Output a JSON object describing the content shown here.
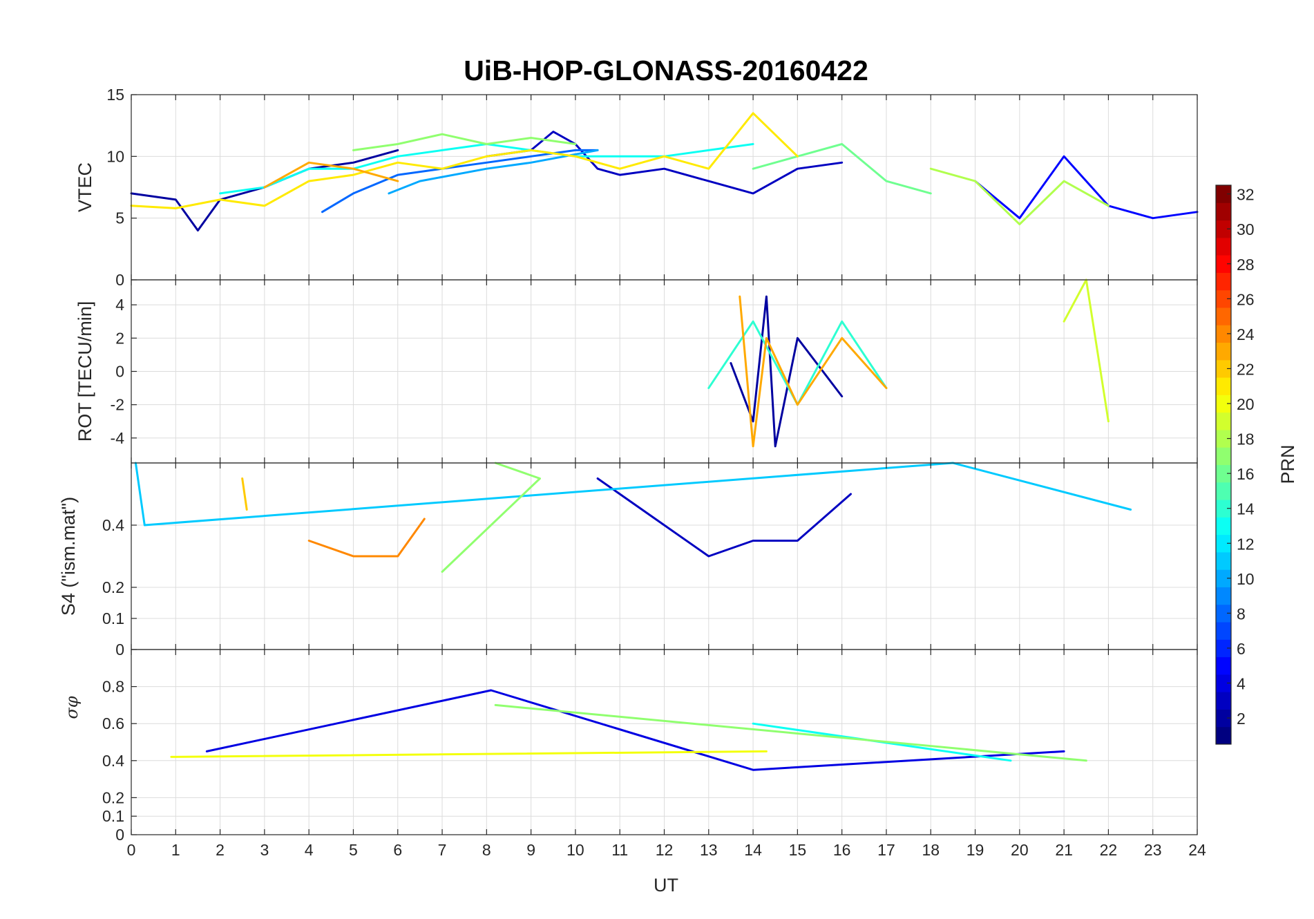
{
  "figure": {
    "title": "UiB-HOP-GLONASS-20160422",
    "xlabel": "UT"
  },
  "colorbar": {
    "label": "PRN",
    "range": [
      1,
      32
    ],
    "ticks": [
      "2",
      "4",
      "6",
      "8",
      "10",
      "12",
      "14",
      "16",
      "18",
      "20",
      "22",
      "24",
      "26",
      "28",
      "30",
      "32"
    ],
    "colormap": "jet"
  },
  "chart_data": [
    {
      "type": "line",
      "panel": "vtec",
      "ylabel": "VTEC",
      "xlim": [
        0,
        24
      ],
      "ylim": [
        0,
        15
      ],
      "xticks": [
        "0",
        "1",
        "2",
        "3",
        "4",
        "5",
        "6",
        "7",
        "8",
        "9",
        "10",
        "11",
        "12",
        "13",
        "14",
        "15",
        "16",
        "17",
        "18",
        "19",
        "20",
        "21",
        "22",
        "23",
        "24"
      ],
      "yticks": [
        "0",
        "5",
        "10",
        "15"
      ],
      "grid": true,
      "series": [
        {
          "prn": 2,
          "x": [
            0,
            1,
            1.5,
            2,
            3,
            4,
            5,
            6
          ],
          "y": [
            7,
            6.5,
            4,
            6.5,
            7.5,
            9,
            9.5,
            10.5
          ]
        },
        {
          "prn": 3,
          "x": [
            8,
            9,
            9.5,
            10,
            10.5,
            11,
            12,
            13,
            14,
            15,
            16
          ],
          "y": [
            10,
            10.5,
            12,
            11,
            9,
            8.5,
            9,
            8,
            7,
            9,
            9.5
          ]
        },
        {
          "prn": 5,
          "x": [
            19,
            20,
            21,
            22,
            23,
            24
          ],
          "y": [
            8,
            5,
            10,
            6,
            5,
            5.5
          ]
        },
        {
          "prn": 8,
          "x": [
            4.3,
            5,
            6,
            7,
            8,
            9,
            10,
            10.5
          ],
          "y": [
            5.5,
            7,
            8.5,
            9,
            9.5,
            10,
            10.5,
            10.5
          ]
        },
        {
          "prn": 10,
          "x": [
            5.8,
            6.5,
            8,
            9,
            10.5
          ],
          "y": [
            7,
            8,
            9,
            9.5,
            10.5
          ]
        },
        {
          "prn": 13,
          "x": [
            2,
            3,
            4,
            5,
            6,
            7,
            8,
            9,
            10,
            11,
            12,
            13,
            14
          ],
          "y": [
            7,
            7.5,
            9,
            9,
            10,
            10.5,
            11,
            10.5,
            10,
            10,
            10,
            10.5,
            11
          ]
        },
        {
          "prn": 16,
          "x": [
            14,
            15,
            16,
            17,
            18
          ],
          "y": [
            9,
            10,
            11,
            8,
            7
          ]
        },
        {
          "prn": 17,
          "x": [
            5,
            6,
            7,
            8,
            9,
            10
          ],
          "y": [
            10.5,
            11,
            11.8,
            11,
            11.5,
            11
          ]
        },
        {
          "prn": 18,
          "x": [
            18,
            19,
            20,
            21,
            22
          ],
          "y": [
            9,
            8,
            4.5,
            8,
            6
          ]
        },
        {
          "prn": 21,
          "x": [
            0,
            1,
            2,
            3,
            4,
            5,
            6,
            7,
            8,
            9,
            10,
            11,
            12,
            13,
            14,
            15
          ],
          "y": [
            6,
            5.8,
            6.5,
            6,
            8,
            8.5,
            9.5,
            9,
            10,
            10.5,
            10,
            9,
            10,
            9,
            13.5,
            10
          ]
        },
        {
          "prn": 23,
          "x": [
            3,
            4,
            5,
            6
          ],
          "y": [
            7.5,
            9.5,
            9,
            8
          ]
        }
      ]
    },
    {
      "type": "line",
      "panel": "rot",
      "ylabel": "ROT [TECU/min]",
      "xlim": [
        0,
        24
      ],
      "ylim": [
        -5.5,
        5.5
      ],
      "xticks": [
        "0",
        "1",
        "2",
        "3",
        "4",
        "5",
        "6",
        "7",
        "8",
        "9",
        "10",
        "11",
        "12",
        "13",
        "14",
        "15",
        "16",
        "17",
        "18",
        "19",
        "20",
        "21",
        "22",
        "23",
        "24"
      ],
      "yticks": [
        "-4",
        "-2",
        "0",
        "2",
        "4"
      ],
      "grid": true,
      "series": [
        {
          "prn": 2,
          "x": [
            13.5,
            14,
            14.3,
            14.5,
            15,
            16
          ],
          "y": [
            0.5,
            -3,
            4.5,
            -4.5,
            2,
            -1.5
          ]
        },
        {
          "prn": 14,
          "x": [
            13,
            14,
            15,
            16,
            17
          ],
          "y": [
            -1,
            3,
            -2,
            3,
            -1
          ]
        },
        {
          "prn": 19,
          "x": [
            21,
            21.5,
            22
          ],
          "y": [
            3,
            5.5,
            -3
          ]
        },
        {
          "prn": 23,
          "x": [
            13.7,
            14,
            14.3,
            15,
            16,
            17
          ],
          "y": [
            4.5,
            -4.5,
            2,
            -2,
            2,
            -1
          ]
        }
      ]
    },
    {
      "type": "line",
      "panel": "s4",
      "ylabel": "S4 (\"ism.mat\")",
      "xlim": [
        0,
        24
      ],
      "ylim": [
        0,
        0.6
      ],
      "xticks": [
        "0",
        "1",
        "2",
        "3",
        "4",
        "5",
        "6",
        "7",
        "8",
        "9",
        "10",
        "11",
        "12",
        "13",
        "14",
        "15",
        "16",
        "17",
        "18",
        "19",
        "20",
        "21",
        "22",
        "23",
        "24"
      ],
      "yticks": [
        "0",
        "0.1",
        "0.2",
        "0.4"
      ],
      "grid": true,
      "series": [
        {
          "prn": 3,
          "x": [
            10.5,
            12,
            13,
            14,
            15,
            16.2
          ],
          "y": [
            0.55,
            0.4,
            0.3,
            0.35,
            0.35,
            0.5
          ]
        },
        {
          "prn": 11,
          "x": [
            0.1,
            0.3,
            18.5,
            22.5
          ],
          "y": [
            0.6,
            0.4,
            0.6,
            0.45
          ]
        },
        {
          "prn": 17,
          "x": [
            8.2,
            9.2,
            7
          ],
          "y": [
            0.6,
            0.55,
            0.25
          ]
        },
        {
          "prn": 22,
          "x": [
            2.5,
            2.6
          ],
          "y": [
            0.55,
            0.45
          ]
        },
        {
          "prn": 24,
          "x": [
            4,
            5,
            6,
            6.6
          ],
          "y": [
            0.35,
            0.3,
            0.3,
            0.42
          ]
        }
      ]
    },
    {
      "type": "line",
      "panel": "sigma_phi",
      "ylabel": "σφ",
      "xlim": [
        0,
        24
      ],
      "ylim": [
        0,
        1
      ],
      "xticks": [
        "0",
        "1",
        "2",
        "3",
        "4",
        "5",
        "6",
        "7",
        "8",
        "9",
        "10",
        "11",
        "12",
        "13",
        "14",
        "15",
        "16",
        "17",
        "18",
        "19",
        "20",
        "21",
        "22",
        "23",
        "24"
      ],
      "yticks": [
        "0",
        "0.1",
        "0.2",
        "0.4",
        "0.6",
        "0.8"
      ],
      "grid": true,
      "series": [
        {
          "prn": 4,
          "x": [
            1.7,
            8.1,
            14,
            21
          ],
          "y": [
            0.45,
            0.78,
            0.35,
            0.45
          ]
        },
        {
          "prn": 13,
          "x": [
            14,
            19.8
          ],
          "y": [
            0.6,
            0.4
          ]
        },
        {
          "prn": 17,
          "x": [
            8.2,
            21.5
          ],
          "y": [
            0.7,
            0.4
          ]
        },
        {
          "prn": 20,
          "x": [
            0.9,
            14.3
          ],
          "y": [
            0.42,
            0.45
          ]
        }
      ]
    }
  ]
}
